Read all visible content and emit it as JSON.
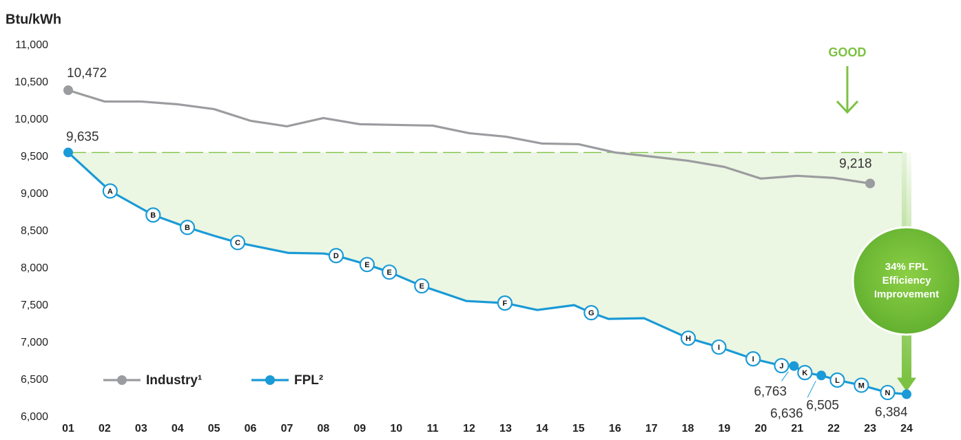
{
  "chart_data": {
    "type": "line",
    "ylabel": "Btu/kWh",
    "ylim": [
      6000,
      11000
    ],
    "yticks": [
      {
        "value": 6000,
        "label": "6,000"
      },
      {
        "value": 6500,
        "label": "6,500"
      },
      {
        "value": 7000,
        "label": "7,000"
      },
      {
        "value": 7500,
        "label": "7,500"
      },
      {
        "value": 8000,
        "label": "8,000"
      },
      {
        "value": 8500,
        "label": "8,500"
      },
      {
        "value": 9000,
        "label": "9,000"
      },
      {
        "value": 9500,
        "label": "9,500"
      },
      {
        "value": 10000,
        "label": "10,000"
      },
      {
        "value": 10500,
        "label": "10,500"
      },
      {
        "value": 11000,
        "label": "11,000"
      }
    ],
    "xlim": [
      1,
      24
    ],
    "xticks": [
      {
        "value": 1,
        "label": "01"
      },
      {
        "value": 2,
        "label": "02"
      },
      {
        "value": 3,
        "label": "03"
      },
      {
        "value": 4,
        "label": "04"
      },
      {
        "value": 5,
        "label": "05"
      },
      {
        "value": 6,
        "label": "06"
      },
      {
        "value": 7,
        "label": "07"
      },
      {
        "value": 8,
        "label": "08"
      },
      {
        "value": 9,
        "label": "09"
      },
      {
        "value": 10,
        "label": "10"
      },
      {
        "value": 11,
        "label": "11"
      },
      {
        "value": 12,
        "label": "12"
      },
      {
        "value": 13,
        "label": "13"
      },
      {
        "value": 14,
        "label": "14"
      },
      {
        "value": 15,
        "label": "15"
      },
      {
        "value": 16,
        "label": "16"
      },
      {
        "value": 17,
        "label": "17"
      },
      {
        "value": 18,
        "label": "18"
      },
      {
        "value": 19,
        "label": "19"
      },
      {
        "value": 20,
        "label": "20"
      },
      {
        "value": 21,
        "label": "21"
      },
      {
        "value": 22,
        "label": "22"
      },
      {
        "value": 23,
        "label": "23"
      },
      {
        "value": 24,
        "label": "24"
      }
    ],
    "legend": "bottom-left",
    "series": [
      {
        "name": "Industry¹",
        "color": "#9b9c9f",
        "x": [
          1,
          2,
          3,
          4,
          5,
          6,
          7,
          8,
          9,
          10,
          11,
          12,
          13,
          14,
          15,
          16,
          17,
          18,
          19,
          20,
          21,
          22,
          23
        ],
        "values": [
          10472,
          10320,
          10320,
          10283,
          10218,
          10061,
          9987,
          10098,
          10015,
          10005,
          9996,
          9894,
          9848,
          9755,
          9746,
          9635,
          9580,
          9524,
          9441,
          9284,
          9321,
          9293,
          9218
        ],
        "value_labels": [
          "10,472",
          null,
          null,
          null,
          null,
          null,
          null,
          null,
          null,
          null,
          null,
          null,
          null,
          null,
          null,
          null,
          null,
          null,
          null,
          null,
          null,
          null,
          "9,218"
        ]
      },
      {
        "name": "FPL²",
        "color": "#1a9ad6",
        "x": [
          1,
          2.15,
          3.33,
          4.27,
          4.99,
          5.65,
          7.03,
          8.01,
          8.35,
          9.2,
          9.81,
          10.7,
          11.93,
          12.98,
          13.87,
          14.88,
          15.35,
          15.82,
          16.8,
          18.01,
          18.85,
          19.79,
          20.57,
          20.91,
          21.21,
          21.66,
          22.1,
          22.76,
          23.48,
          24
        ],
        "values": [
          9635,
          9117,
          8794,
          8627,
          8516,
          8423,
          8285,
          8276,
          8248,
          8128,
          8026,
          7841,
          7637,
          7610,
          7517,
          7582,
          7480,
          7397,
          7406,
          7138,
          7018,
          6860,
          6768,
          6763,
          6675,
          6636,
          6574,
          6505,
          6407,
          6384
        ],
        "value_labels": [
          "9,635",
          null,
          null,
          null,
          null,
          null,
          null,
          null,
          null,
          null,
          null,
          null,
          null,
          null,
          null,
          null,
          null,
          null,
          null,
          null,
          null,
          null,
          null,
          "6,763",
          null,
          "6,636",
          null,
          "6,505",
          null,
          "6,384"
        ],
        "point_labels": [
          null,
          "A",
          "B",
          "B",
          null,
          "C",
          null,
          null,
          "D",
          "E",
          "E",
          "E",
          null,
          "F",
          null,
          null,
          "G",
          null,
          null,
          "H",
          "I",
          "I",
          "J",
          null,
          "K",
          null,
          "L",
          "M",
          "N",
          null
        ]
      }
    ],
    "annotations": {
      "good": "GOOD",
      "improvement": [
        "34% FPL",
        "Efficiency",
        "Improvement"
      ]
    },
    "accent_color": "#7cc242"
  }
}
